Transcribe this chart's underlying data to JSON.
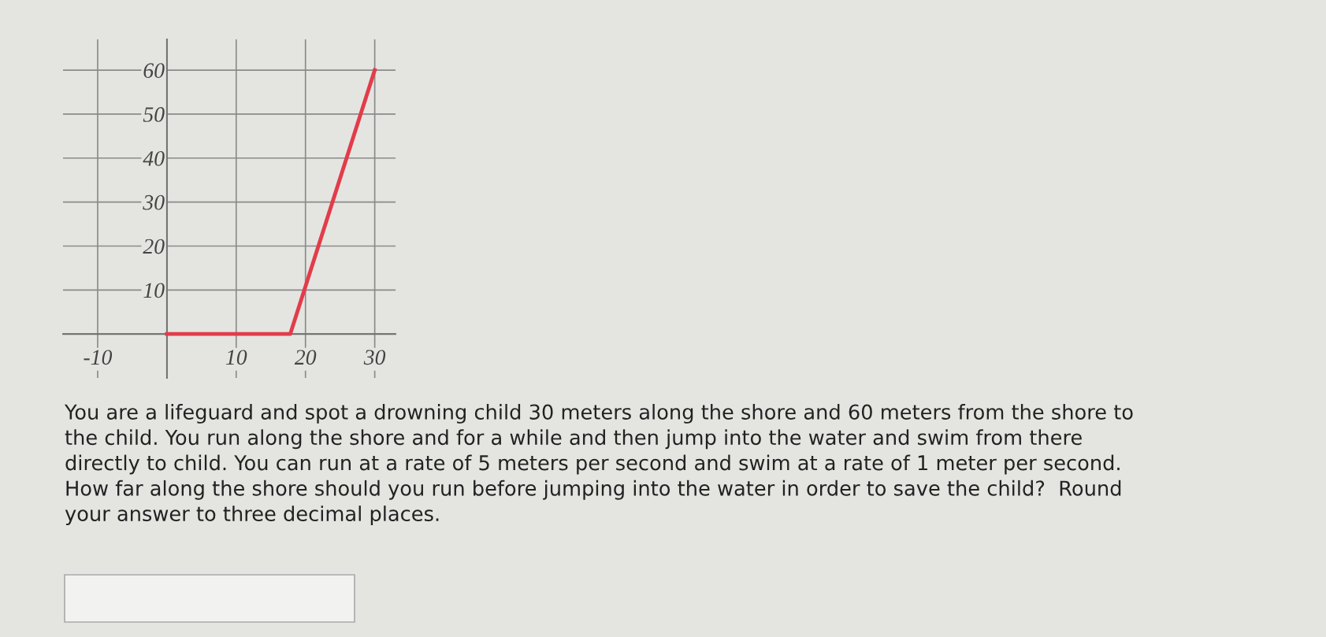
{
  "chart_data": {
    "type": "line",
    "x": [
      0,
      17.8,
      30
    ],
    "series": [
      {
        "color": "#e23c4a",
        "values": [
          0,
          0,
          60
        ]
      }
    ],
    "xlim": [
      -15,
      33
    ],
    "ylim": [
      -10,
      67
    ],
    "xticks": [
      -10,
      {
        "value": 0,
        "label": null
      },
      10,
      20,
      30
    ],
    "yticks": [
      {
        "value": 0,
        "label": null
      },
      10,
      20,
      30,
      40,
      50,
      60
    ],
    "grid": true,
    "annotations": [
      "You are a lifeguard and spot a drowning child 30 meters along the shore and 60 meters from the shore to\nthe child. You run along the shore and for a while and then jump into the water and swim from there\ndirectly to child. You can run at a rate of 5 meters per second and swim at a rate of 1 meter per second.\nHow far along the shore should you run before jumping into the water in order to save the child?  Round\nyour answer to three decimal places."
    ]
  }
}
